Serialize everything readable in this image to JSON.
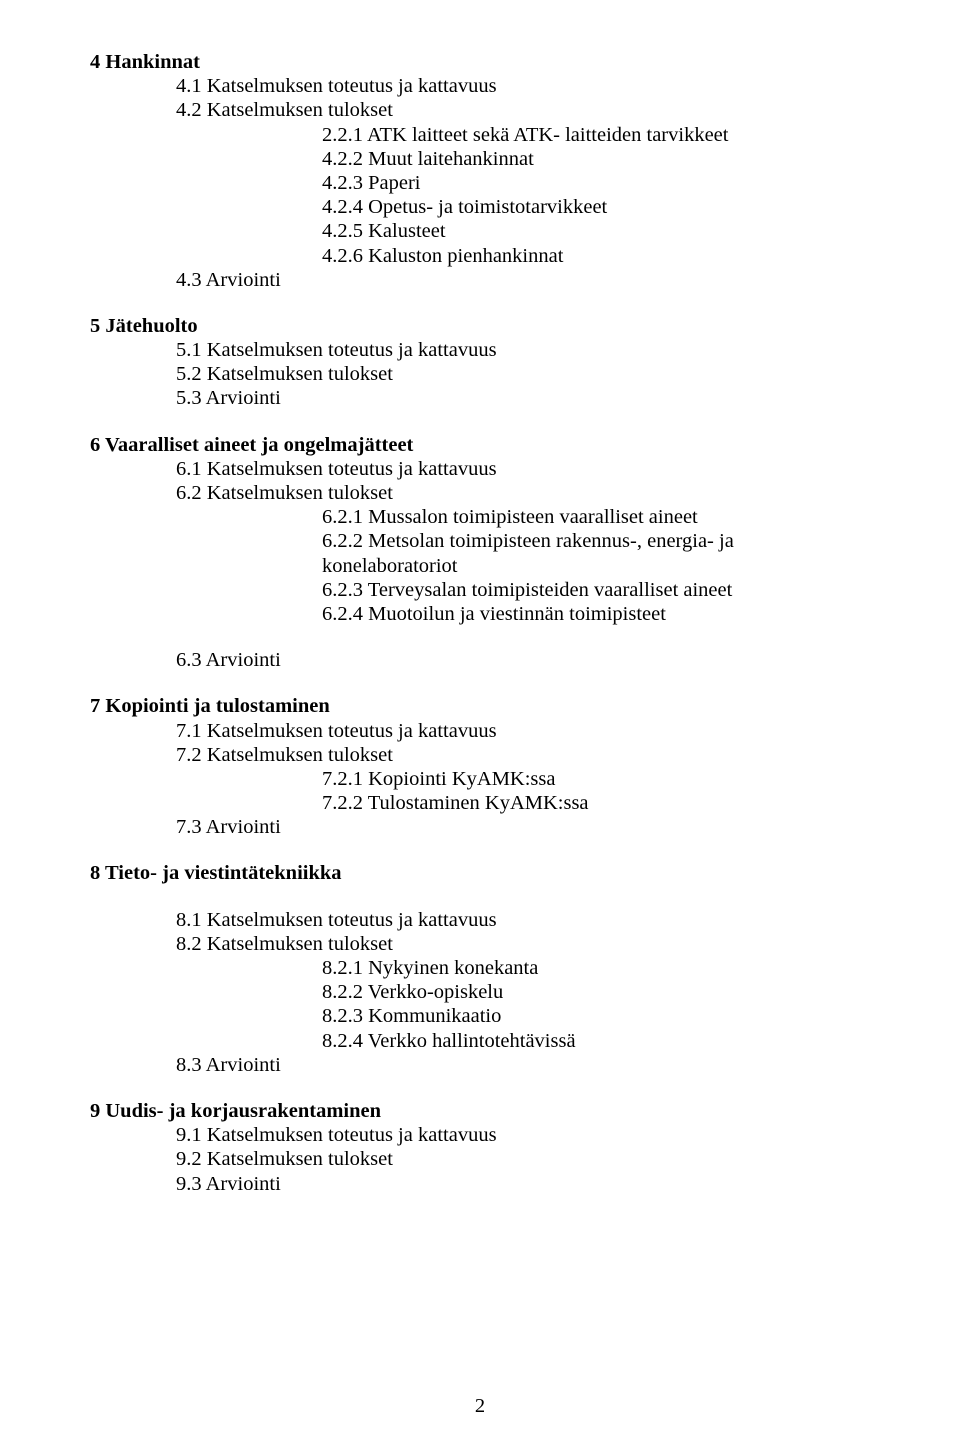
{
  "section4": {
    "title": "4 Hankinnat",
    "l41": "4.1 Katselmuksen toteutus ja kattavuus",
    "l42": "4.2 Katselmuksen tulokset",
    "l221": "2.2.1 ATK laitteet sekä ATK- laitteiden tarvikkeet",
    "l422": "4.2.2 Muut laitehankinnat",
    "l423": "4.2.3 Paperi",
    "l424": "4.2.4 Opetus- ja toimistotarvikkeet",
    "l425": "4.2.5 Kalusteet",
    "l426": "4.2.6 Kaluston pienhankinnat",
    "l43": "4.3 Arviointi"
  },
  "section5": {
    "title": "5 Jätehuolto",
    "l51": "5.1 Katselmuksen toteutus ja kattavuus",
    "l52": "5.2 Katselmuksen tulokset",
    "l53": "5.3 Arviointi"
  },
  "section6": {
    "title": "6 Vaaralliset aineet ja ongelmajätteet",
    "l61": "6.1 Katselmuksen toteutus ja kattavuus",
    "l62": "6.2 Katselmuksen tulokset",
    "l621": "6.2.1 Mussalon toimipisteen vaaralliset aineet",
    "l622": "6.2.2 Metsolan toimipisteen rakennus-, energia- ja konelaboratoriot",
    "l623": "6.2.3 Terveysalan toimipisteiden vaaralliset aineet",
    "l624": "6.2.4 Muotoilun ja viestinnän toimipisteet",
    "l63": "6.3 Arviointi"
  },
  "section7": {
    "title": "7 Kopiointi ja tulostaminen",
    "l71": "7.1 Katselmuksen toteutus ja kattavuus",
    "l72": "7.2 Katselmuksen tulokset",
    "l721": "7.2.1 Kopiointi KyAMK:ssa",
    "l722": "7.2.2 Tulostaminen KyAMK:ssa",
    "l73": "7.3 Arviointi"
  },
  "section8": {
    "title": "8 Tieto- ja viestintätekniikka",
    "l81": "8.1 Katselmuksen toteutus ja kattavuus",
    "l82": "8.2 Katselmuksen tulokset",
    "l821": "8.2.1 Nykyinen konekanta",
    "l822": "8.2.2 Verkko-opiskelu",
    "l823": "8.2.3 Kommunikaatio",
    "l824": "8.2.4 Verkko hallintotehtävissä",
    "l83": "8.3 Arviointi"
  },
  "section9": {
    "title": "9 Uudis- ja korjausrakentaminen",
    "l91": "9.1 Katselmuksen toteutus ja kattavuus",
    "l92": "9.2 Katselmuksen tulokset",
    "l93": "9.3 Arviointi"
  },
  "pagenum": "2"
}
